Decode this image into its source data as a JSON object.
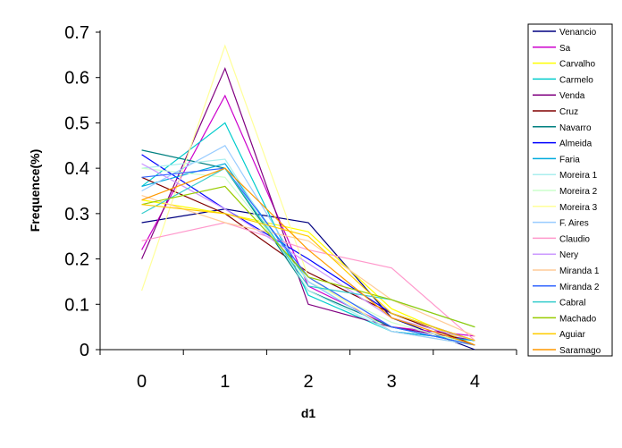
{
  "chart_data": {
    "type": "line",
    "title": "",
    "xlabel": "d1",
    "ylabel": "Frequence(%)",
    "x": [
      0,
      1,
      2,
      3,
      4
    ],
    "x_ticks": [
      "0",
      "1",
      "2",
      "3",
      "4"
    ],
    "y_ticks": [
      "0",
      "0.1",
      "0.2",
      "0.3",
      "0.4",
      "0.5",
      "0.6",
      "0.7"
    ],
    "ylim": [
      0,
      0.7
    ],
    "grid": false,
    "legend_position": "right",
    "series": [
      {
        "name": "Venancio",
        "color": "#000080",
        "values": [
          0.28,
          0.31,
          0.28,
          0.07,
          0.0
        ]
      },
      {
        "name": "Sa",
        "color": "#cc00cc",
        "values": [
          0.22,
          0.56,
          0.14,
          0.05,
          0.03
        ]
      },
      {
        "name": "Carvalho",
        "color": "#ffff00",
        "values": [
          0.33,
          0.3,
          0.26,
          0.09,
          0.01
        ]
      },
      {
        "name": "Carmelo",
        "color": "#00cccc",
        "values": [
          0.36,
          0.5,
          0.12,
          0.04,
          0.02
        ]
      },
      {
        "name": "Venda",
        "color": "#800080",
        "values": [
          0.2,
          0.62,
          0.1,
          0.05,
          0.02
        ]
      },
      {
        "name": "Cruz",
        "color": "#800000",
        "values": [
          0.38,
          0.3,
          0.17,
          0.08,
          0.01
        ]
      },
      {
        "name": "Navarro",
        "color": "#008080",
        "values": [
          0.44,
          0.4,
          0.13,
          0.05,
          0.01
        ]
      },
      {
        "name": "Almeida",
        "color": "#0000ff",
        "values": [
          0.43,
          0.31,
          0.2,
          0.08,
          0.02
        ]
      },
      {
        "name": "Faria",
        "color": "#00aadd",
        "values": [
          0.36,
          0.41,
          0.15,
          0.04,
          0.02
        ]
      },
      {
        "name": "Moreira 1",
        "color": "#aaeeee",
        "values": [
          0.4,
          0.42,
          0.13,
          0.04,
          0.01
        ]
      },
      {
        "name": "Moreira 2",
        "color": "#ccffcc",
        "values": [
          0.4,
          0.38,
          0.15,
          0.06,
          0.01
        ]
      },
      {
        "name": "Moreira 3",
        "color": "#ffff99",
        "values": [
          0.13,
          0.67,
          0.16,
          0.04,
          0.01
        ]
      },
      {
        "name": "F. Aires",
        "color": "#99ccff",
        "values": [
          0.35,
          0.45,
          0.15,
          0.04,
          0.01
        ]
      },
      {
        "name": "Claudio",
        "color": "#ff99cc",
        "values": [
          0.24,
          0.28,
          0.22,
          0.18,
          0.02
        ]
      },
      {
        "name": "Nery",
        "color": "#cc99ff",
        "values": [
          0.41,
          0.31,
          0.19,
          0.07,
          0.02
        ]
      },
      {
        "name": "Miranda 1",
        "color": "#ffcc99",
        "values": [
          0.34,
          0.28,
          0.24,
          0.11,
          0.03
        ]
      },
      {
        "name": "Miranda 2",
        "color": "#3366ff",
        "values": [
          0.38,
          0.4,
          0.16,
          0.05,
          0.01
        ]
      },
      {
        "name": "Cabral",
        "color": "#33cccc",
        "values": [
          0.3,
          0.4,
          0.14,
          0.11,
          0.05
        ]
      },
      {
        "name": "Machado",
        "color": "#99cc00",
        "values": [
          0.32,
          0.36,
          0.16,
          0.11,
          0.05
        ]
      },
      {
        "name": "Aguiar",
        "color": "#ffcc00",
        "values": [
          0.32,
          0.3,
          0.25,
          0.08,
          0.02
        ]
      },
      {
        "name": "Saramago",
        "color": "#ff9900",
        "values": [
          0.33,
          0.4,
          0.22,
          0.07,
          0.01
        ]
      }
    ]
  }
}
